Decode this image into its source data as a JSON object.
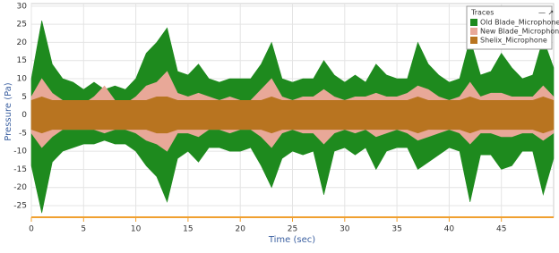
{
  "chart_data": {
    "type": "area",
    "x_label": "Time (sec)",
    "y_label": "Pressure (Pa)",
    "legend_title": "Traces",
    "legend_position": "upper right",
    "grid": true,
    "xlim": [
      0,
      50
    ],
    "ylim": [
      -28.2,
      30.7
    ],
    "xticks": [
      0,
      5,
      10,
      15,
      20,
      25,
      30,
      35,
      40,
      45
    ],
    "yticks": [
      30,
      25,
      20,
      15,
      10,
      5,
      0,
      -5,
      -10,
      -15,
      -20,
      -25
    ],
    "x": [
      0,
      1,
      2,
      3,
      4,
      5,
      6,
      7,
      8,
      9,
      10,
      11,
      12,
      13,
      14,
      15,
      16,
      17,
      18,
      19,
      20,
      21,
      22,
      23,
      24,
      25,
      26,
      27,
      28,
      29,
      30,
      31,
      32,
      33,
      34,
      35,
      36,
      37,
      38,
      39,
      40,
      41,
      42,
      43,
      44,
      45,
      46,
      47,
      48,
      49,
      50
    ],
    "series": [
      {
        "name": "Old Blade_Microphone",
        "color": "#1e8a1e",
        "values": [
          10,
          26,
          14,
          10,
          9,
          7,
          9,
          7,
          8,
          7,
          10,
          17,
          20,
          24,
          12,
          11,
          14,
          10,
          9,
          10,
          10,
          10,
          14,
          20,
          10,
          9,
          10,
          10,
          15,
          11,
          9,
          11,
          9,
          14,
          11,
          10,
          10,
          20,
          14,
          11,
          9,
          10,
          21,
          11,
          12,
          17,
          13,
          10,
          11,
          21,
          13
        ],
        "lows": [
          -14,
          -27,
          -13,
          -10,
          -9,
          -8,
          -8,
          -7,
          -8,
          -8,
          -10,
          -14,
          -17,
          -24,
          -12,
          -10,
          -13,
          -9,
          -9,
          -10,
          -10,
          -9,
          -14,
          -20,
          -12,
          -10,
          -11,
          -10,
          -22,
          -10,
          -9,
          -11,
          -9,
          -15,
          -10,
          -9,
          -9,
          -15,
          -13,
          -11,
          -9,
          -10,
          -24,
          -11,
          -11,
          -15,
          -14,
          -10,
          -10,
          -22,
          -12
        ]
      },
      {
        "name": "New Blade_Microphone",
        "color": "#e8a898",
        "values": [
          5,
          10,
          6,
          4,
          4,
          3,
          5,
          8,
          4,
          3,
          5,
          8,
          9,
          12,
          6,
          5,
          6,
          5,
          4,
          5,
          4,
          4,
          7,
          10,
          5,
          4,
          5,
          5,
          7,
          5,
          4,
          5,
          5,
          6,
          5,
          5,
          6,
          8,
          7,
          5,
          4,
          5,
          9,
          5,
          6,
          6,
          5,
          5,
          5,
          8,
          5
        ],
        "lows": [
          -5,
          -9,
          -6,
          -4,
          -4,
          -4,
          -4,
          -5,
          -4,
          -4,
          -5,
          -7,
          -8,
          -10,
          -5,
          -5,
          -6,
          -4,
          -4,
          -5,
          -4,
          -4,
          -6,
          -9,
          -5,
          -4,
          -5,
          -5,
          -8,
          -5,
          -4,
          -5,
          -4,
          -6,
          -5,
          -4,
          -5,
          -7,
          -6,
          -5,
          -4,
          -5,
          -8,
          -5,
          -5,
          -6,
          -6,
          -5,
          -5,
          -7,
          -5
        ]
      },
      {
        "name": "Shelix_Microphone",
        "color": "#b87420",
        "values": [
          4,
          5,
          4,
          4,
          4,
          4,
          4,
          4,
          4,
          4,
          4,
          4,
          5,
          5,
          4,
          4,
          4,
          4,
          4,
          4,
          4,
          4,
          4,
          5,
          4,
          4,
          4,
          4,
          4,
          4,
          4,
          4,
          4,
          4,
          4,
          4,
          4,
          5,
          4,
          4,
          4,
          4,
          5,
          4,
          4,
          4,
          4,
          4,
          4,
          5,
          4
        ],
        "lows": [
          -4,
          -5,
          -4,
          -4,
          -4,
          -4,
          -4,
          -4,
          -4,
          -4,
          -4,
          -4,
          -5,
          -5,
          -4,
          -4,
          -4,
          -4,
          -4,
          -4,
          -4,
          -4,
          -4,
          -5,
          -4,
          -4,
          -4,
          -4,
          -4,
          -4,
          -4,
          -4,
          -4,
          -4,
          -4,
          -4,
          -4,
          -5,
          -4,
          -4,
          -4,
          -4,
          -5,
          -4,
          -4,
          -4,
          -4,
          -4,
          -4,
          -5,
          -4
        ]
      }
    ]
  }
}
